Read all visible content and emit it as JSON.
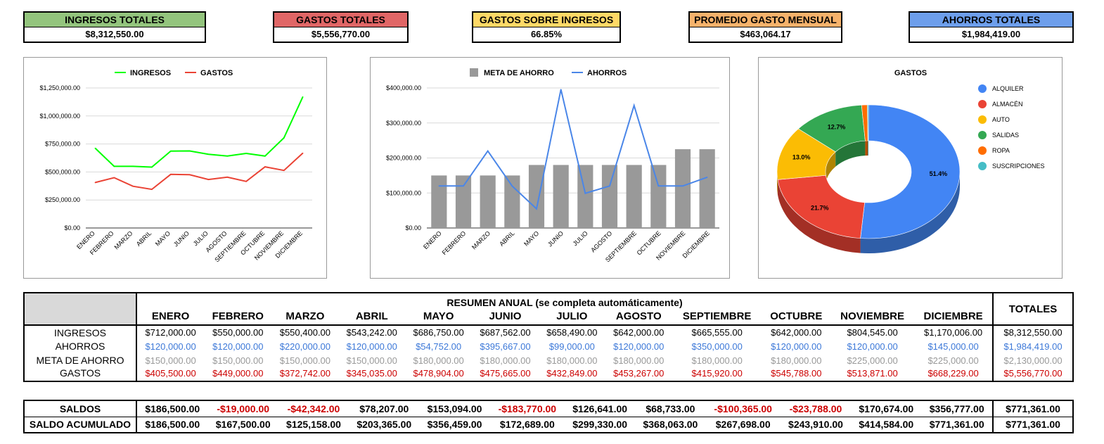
{
  "kpis": [
    {
      "title": "INGRESOS TOTALES",
      "value": "$8,312,550.00",
      "color": "#93c47d"
    },
    {
      "title": "GASTOS TOTALES",
      "value": "$5,556,770.00",
      "color": "#e06666"
    },
    {
      "title": "GASTOS SOBRE INGRESOS",
      "value": "66.85%",
      "color": "#ffd966"
    },
    {
      "title": "PROMEDIO GASTO MENSUAL",
      "value": "$463,064.17",
      "color": "#f6b26b"
    },
    {
      "title": "AHORROS TOTALES",
      "value": "$1,984,419.00",
      "color": "#6d9eeb"
    }
  ],
  "chart_data": [
    {
      "type": "line",
      "categories": [
        "ENERO",
        "FEBRERO",
        "MARZO",
        "ABRIL",
        "MAYO",
        "JUNIO",
        "JULIO",
        "AGOSTO",
        "SEPTIEMBRE",
        "OCTUBRE",
        "NOVIEMBRE",
        "DICIEMBRE"
      ],
      "series": [
        {
          "name": "INGRESOS",
          "color": "#00ff00",
          "values": [
            712000,
            550000,
            550400,
            543242,
            686750,
            687562,
            658490,
            642000,
            665555,
            642000,
            804545,
            1170006
          ]
        },
        {
          "name": "GASTOS",
          "color": "#ea4335",
          "values": [
            405500,
            449000,
            372742,
            345035,
            478904,
            475665,
            432849,
            453267,
            415920,
            545788,
            513871,
            668229
          ]
        }
      ],
      "ylim": [
        0,
        1250000
      ],
      "yticks": [
        "$0.00",
        "$250,000.00",
        "$500,000.00",
        "$750,000.00",
        "$1,000,000.00",
        "$1,250,000.00"
      ],
      "legend": "top"
    },
    {
      "type": "bar",
      "categories": [
        "ENERO",
        "FEBRERO",
        "MARZO",
        "ABRIL",
        "MAYO",
        "JUNIO",
        "JULIO",
        "AGOSTO",
        "SEPTIEMBRE",
        "OCTUBRE",
        "NOVIEMBRE",
        "DICIEMBRE"
      ],
      "series": [
        {
          "name": "META DE AHORRO",
          "kind": "bar",
          "color": "#999999",
          "values": [
            150000,
            150000,
            150000,
            150000,
            180000,
            180000,
            180000,
            180000,
            180000,
            180000,
            225000,
            225000
          ]
        },
        {
          "name": "AHORROS",
          "kind": "line",
          "color": "#4a86e8",
          "values": [
            120000,
            120000,
            220000,
            120000,
            54752,
            395667,
            99000,
            120000,
            350000,
            120000,
            120000,
            145000
          ]
        }
      ],
      "ylim": [
        0,
        400000
      ],
      "yticks": [
        "$0.00",
        "$100,000.00",
        "$200,000.00",
        "$300,000.00",
        "$400,000.00"
      ],
      "legend": "top"
    },
    {
      "type": "pie",
      "title": "GASTOS",
      "donut": true,
      "slices": [
        {
          "label": "ALQUILER",
          "value": 51.4,
          "pct_label": "51.4%",
          "color": "#4285f4",
          "side": "#2f5ea8"
        },
        {
          "label": "ALMACÉN",
          "value": 21.7,
          "pct_label": "21.7%",
          "color": "#ea4335",
          "side": "#a32f25"
        },
        {
          "label": "AUTO",
          "value": 13.0,
          "pct_label": "13.0%",
          "color": "#fbbc04",
          "side": "#b08403"
        },
        {
          "label": "SALIDAS",
          "value": 12.7,
          "pct_label": "12.7%",
          "color": "#34a853",
          "side": "#247538"
        },
        {
          "label": "ROPA",
          "value": 1.0,
          "pct_label": "",
          "color": "#ff6d01",
          "side": "#b34c01"
        },
        {
          "label": "SUSCRIPCIONES",
          "value": 0.2,
          "pct_label": "",
          "color": "#46bdc6",
          "side": "#31848a"
        }
      ],
      "legend": "right"
    }
  ],
  "summary": {
    "title": "RESUMEN ANUAL (se completa automáticamente)",
    "months": [
      "ENERO",
      "FEBRERO",
      "MARZO",
      "ABRIL",
      "MAYO",
      "JUNIO",
      "JULIO",
      "AGOSTO",
      "SEPTIEMBRE",
      "OCTUBRE",
      "NOVIEMBRE",
      "DICIEMBRE"
    ],
    "totals_header": "TOTALES",
    "rows": [
      {
        "label": "INGRESOS",
        "cls": "c-ing",
        "values": [
          "$712,000.00",
          "$550,000.00",
          "$550,400.00",
          "$543,242.00",
          "$686,750.00",
          "$687,562.00",
          "$658,490.00",
          "$642,000.00",
          "$665,555.00",
          "$642,000.00",
          "$804,545.00",
          "$1,170,006.00"
        ],
        "total": "$8,312,550.00"
      },
      {
        "label": "AHORROS",
        "cls": "c-aho",
        "values": [
          "$120,000.00",
          "$120,000.00",
          "$220,000.00",
          "$120,000.00",
          "$54,752.00",
          "$395,667.00",
          "$99,000.00",
          "$120,000.00",
          "$350,000.00",
          "$120,000.00",
          "$120,000.00",
          "$145,000.00"
        ],
        "total": "$1,984,419.00"
      },
      {
        "label": "META DE AHORRO",
        "cls": "c-meta",
        "values": [
          "$150,000.00",
          "$150,000.00",
          "$150,000.00",
          "$150,000.00",
          "$180,000.00",
          "$180,000.00",
          "$180,000.00",
          "$180,000.00",
          "$180,000.00",
          "$180,000.00",
          "$225,000.00",
          "$225,000.00"
        ],
        "total": "$2,130,000.00"
      },
      {
        "label": "GASTOS",
        "cls": "c-gas",
        "values": [
          "$405,500.00",
          "$449,000.00",
          "$372,742.00",
          "$345,035.00",
          "$478,904.00",
          "$475,665.00",
          "$432,849.00",
          "$453,267.00",
          "$415,920.00",
          "$545,788.00",
          "$513,871.00",
          "$668,229.00"
        ],
        "total": "$5,556,770.00"
      }
    ]
  },
  "balances": [
    {
      "label": "SALDOS",
      "values": [
        "$186,500.00",
        "-$19,000.00",
        "-$42,342.00",
        "$78,207.00",
        "$153,094.00",
        "-$183,770.00",
        "$126,641.00",
        "$68,733.00",
        "-$100,365.00",
        "-$23,788.00",
        "$170,674.00",
        "$356,777.00"
      ],
      "total": "$771,361.00"
    },
    {
      "label": "SALDO ACUMULADO",
      "values": [
        "$186,500.00",
        "$167,500.00",
        "$125,158.00",
        "$203,365.00",
        "$356,459.00",
        "$172,689.00",
        "$299,330.00",
        "$368,063.00",
        "$267,698.00",
        "$243,910.00",
        "$414,584.00",
        "$771,361.00"
      ],
      "total": "$771,361.00"
    }
  ]
}
